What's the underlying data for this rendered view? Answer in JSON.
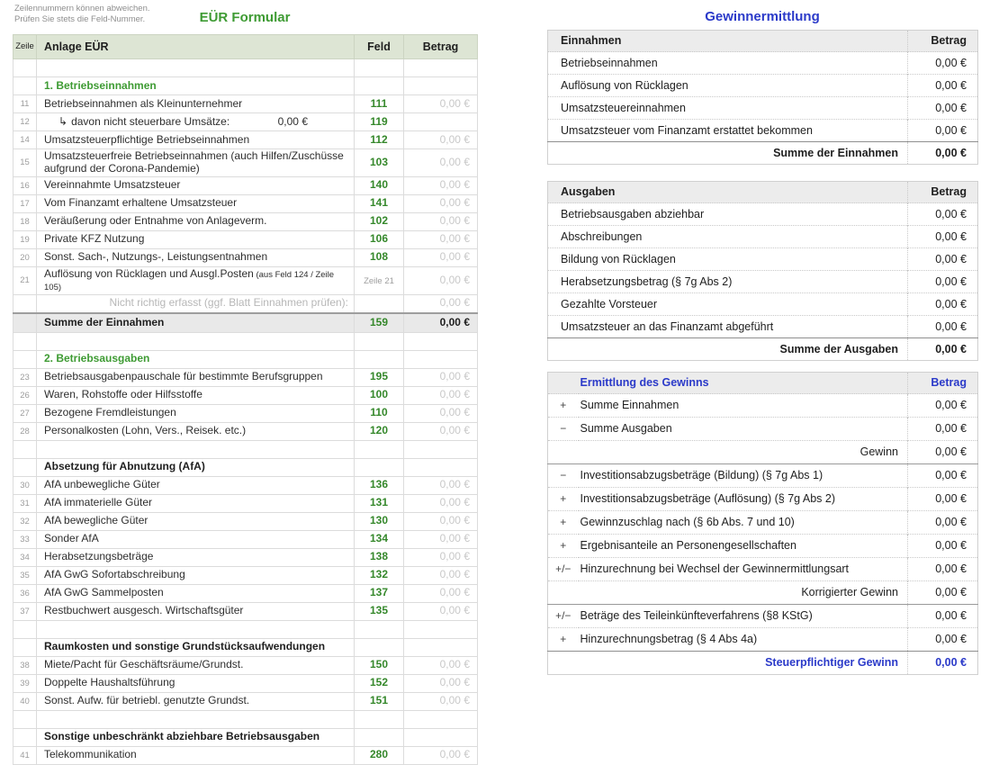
{
  "colors": {
    "accent_green": "#3e9b33",
    "accent_blue": "#2b3ac9",
    "header_band_green": "#dde5d4",
    "header_band_gray": "#ececec"
  },
  "left": {
    "note": [
      "Zeilennummern können abweichen.",
      "Prüfen Sie stets die Feld-Nummer."
    ],
    "title": "EÜR Formular",
    "headers": {
      "zeile": "Zeile",
      "anlage": "Anlage EÜR",
      "feld": "Feld",
      "betrag": "Betrag"
    },
    "rows": [
      {
        "type": "empty"
      },
      {
        "type": "section",
        "label": "1. Betriebseinnahmen"
      },
      {
        "type": "normal",
        "zeile": "11",
        "label": "Betriebseinnahmen als Kleinunternehmer",
        "feld": "111",
        "betrag": "0,00 €"
      },
      {
        "type": "sub",
        "zeile": "12",
        "arrow": "↳",
        "label": "davon nicht steuerbare Umsätze:",
        "inline_value": "0,00 €",
        "feld": "119"
      },
      {
        "type": "normal",
        "zeile": "14",
        "label": "Umsatzsteuerpflichtige Betriebseinnahmen",
        "feld": "112",
        "betrag": "0,00 €"
      },
      {
        "type": "normal",
        "zeile": "15",
        "label": "Umsatzsteuerfreie Betriebseinnahmen (auch Hilfen/Zuschüsse aufgrund der Corona-Pandemie)",
        "feld": "103",
        "betrag": "0,00 €"
      },
      {
        "type": "normal",
        "zeile": "16",
        "label": "Vereinnahmte Umsatzsteuer",
        "feld": "140",
        "betrag": "0,00 €"
      },
      {
        "type": "normal",
        "zeile": "17",
        "label": "Vom Finanzamt erhaltene Umsatzsteuer",
        "feld": "141",
        "betrag": "0,00 €"
      },
      {
        "type": "normal",
        "zeile": "18",
        "label": "Veräußerung oder Entnahme von Anlageverm.",
        "feld": "102",
        "betrag": "0,00 €"
      },
      {
        "type": "normal",
        "zeile": "19",
        "label": "Private KFZ Nutzung",
        "feld": "106",
        "betrag": "0,00 €"
      },
      {
        "type": "normal",
        "zeile": "20",
        "label": "Sonst. Sach-, Nutzungs-, Leistungsentnahmen",
        "feld": "108",
        "betrag": "0,00 €"
      },
      {
        "type": "normal",
        "zeile": "21",
        "label": "Auflösung von Rücklagen und Ausgl.Posten",
        "label_small": "(aus Feld 124 / Zeile 105)",
        "feld_small": "Zeile 21",
        "betrag": "0,00 €"
      },
      {
        "type": "note",
        "label": "Nicht richtig erfasst (ggf. Blatt Einnahmen prüfen):",
        "betrag": "0,00 €"
      },
      {
        "type": "sum",
        "label": "Summe der Einnahmen",
        "feld": "159",
        "betrag": "0,00 €"
      },
      {
        "type": "empty"
      },
      {
        "type": "section",
        "label": "2. Betriebsausgaben"
      },
      {
        "type": "normal",
        "zeile": "23",
        "label": "Betriebsausgabenpauschale für bestimmte Berufsgruppen",
        "feld": "195",
        "betrag": "0,00 €"
      },
      {
        "type": "normal",
        "zeile": "26",
        "label": "Waren, Rohstoffe oder Hilfsstoffe",
        "feld": "100",
        "betrag": "0,00 €"
      },
      {
        "type": "normal",
        "zeile": "27",
        "label": "Bezogene Fremdleistungen",
        "feld": "110",
        "betrag": "0,00 €"
      },
      {
        "type": "normal",
        "zeile": "28",
        "label": "Personalkosten (Lohn, Vers., Reisek. etc.)",
        "feld": "120",
        "betrag": "0,00 €"
      },
      {
        "type": "empty"
      },
      {
        "type": "subhead",
        "label": "Absetzung für Abnutzung (AfA)"
      },
      {
        "type": "normal",
        "zeile": "30",
        "label": "AfA unbewegliche Güter",
        "feld": "136",
        "betrag": "0,00 €"
      },
      {
        "type": "normal",
        "zeile": "31",
        "label": "AfA immaterielle Güter",
        "feld": "131",
        "betrag": "0,00 €"
      },
      {
        "type": "normal",
        "zeile": "32",
        "label": "AfA bewegliche Güter",
        "feld": "130",
        "betrag": "0,00 €"
      },
      {
        "type": "normal",
        "zeile": "33",
        "label": "Sonder AfA",
        "feld": "134",
        "betrag": "0,00 €"
      },
      {
        "type": "normal",
        "zeile": "34",
        "label": "Herabsetzungsbeträge",
        "feld": "138",
        "betrag": "0,00 €"
      },
      {
        "type": "normal",
        "zeile": "35",
        "label": "AfA GwG Sofortabschreibung",
        "feld": "132",
        "betrag": "0,00 €"
      },
      {
        "type": "normal",
        "zeile": "36",
        "label": "AfA GwG Sammelposten",
        "feld": "137",
        "betrag": "0,00 €"
      },
      {
        "type": "normal",
        "zeile": "37",
        "label": "Restbuchwert ausgesch. Wirtschaftsgüter",
        "feld": "135",
        "betrag": "0,00 €"
      },
      {
        "type": "empty"
      },
      {
        "type": "subhead",
        "label": "Raumkosten und sonstige Grundstücksaufwendungen"
      },
      {
        "type": "normal",
        "zeile": "38",
        "label": "Miete/Pacht für Geschäftsräume/Grundst.",
        "feld": "150",
        "betrag": "0,00 €"
      },
      {
        "type": "normal",
        "zeile": "39",
        "label": "Doppelte Haushaltsführung",
        "feld": "152",
        "betrag": "0,00 €"
      },
      {
        "type": "normal",
        "zeile": "40",
        "label": "Sonst. Aufw. für betriebl. genutzte Grundst.",
        "feld": "151",
        "betrag": "0,00 €"
      },
      {
        "type": "empty"
      },
      {
        "type": "subhead",
        "label": "Sonstige unbeschränkt abziehbare Betriebsausgaben"
      },
      {
        "type": "normal",
        "zeile": "41",
        "label": "Telekommunikation",
        "feld": "280",
        "betrag": "0,00 €"
      }
    ]
  },
  "right": {
    "title": "Gewinnermittlung",
    "einnahmen": {
      "header": "Einnahmen",
      "betrag_header": "Betrag",
      "rows": [
        {
          "label": "Betriebseinnahmen",
          "value": "0,00 €"
        },
        {
          "label": "Auflösung von Rücklagen",
          "value": "0,00 €"
        },
        {
          "label": "Umsatzsteuereinnahmen",
          "value": "0,00 €"
        },
        {
          "label": "Umsatzsteuer vom Finanzamt erstattet bekommen",
          "value": "0,00 €"
        }
      ],
      "sum_label": "Summe der Einnahmen",
      "sum_value": "0,00 €"
    },
    "ausgaben": {
      "header": "Ausgaben",
      "betrag_header": "Betrag",
      "rows": [
        {
          "label": "Betriebsausgaben abziehbar",
          "value": "0,00 €"
        },
        {
          "label": "Abschreibungen",
          "value": "0,00 €"
        },
        {
          "label": "Bildung von Rücklagen",
          "value": "0,00 €"
        },
        {
          "label": "Herabsetzungsbetrag (§ 7g Abs 2)",
          "value": "0,00 €"
        },
        {
          "label": "Gezahlte Vorsteuer",
          "value": "0,00 €"
        },
        {
          "label": "Umsatzsteuer an das Finanzamt abgeführt",
          "value": "0,00 €"
        }
      ],
      "sum_label": "Summe der Ausgaben",
      "sum_value": "0,00 €"
    },
    "ermittlung": {
      "header": "Ermittlung des Gewinns",
      "betrag_header": "Betrag",
      "rows": [
        {
          "type": "normal",
          "sign": "+",
          "label": "Summe Einnahmen",
          "value": "0,00 €"
        },
        {
          "type": "normal",
          "sign": "−",
          "label": "Summe Ausgaben",
          "value": "0,00 €"
        },
        {
          "type": "subtotal",
          "sign": "",
          "label": "Gewinn",
          "value": "0,00 €"
        },
        {
          "type": "normal",
          "sign": "−",
          "label": "Investitionsabzugsbeträge (Bildung) (§ 7g Abs 1)",
          "value": "0,00 €"
        },
        {
          "type": "normal",
          "sign": "+",
          "label": "Investitionsabzugsbeträge (Auflösung) (§ 7g Abs 2)",
          "value": "0,00 €"
        },
        {
          "type": "normal",
          "sign": "+",
          "label": "Gewinnzuschlag nach (§ 6b Abs. 7 und 10)",
          "value": "0,00 €"
        },
        {
          "type": "normal",
          "sign": "+",
          "label": "Ergebnisanteile an Personengesellschaften",
          "value": "0,00 €"
        },
        {
          "type": "normal",
          "sign": "+/−",
          "label": "Hinzurechnung bei Wechsel der Gewinnermittlungsart",
          "value": "0,00 €"
        },
        {
          "type": "subtotal",
          "sign": "",
          "label": "Korrigierter Gewinn",
          "value": "0,00 €"
        },
        {
          "type": "normal",
          "sign": "+/−",
          "label": "Beträge des Teileinkünfteverfahrens (§8 KStG)",
          "value": "0,00 €"
        },
        {
          "type": "normal",
          "sign": "+",
          "label": "Hinzurechnungsbetrag (§ 4 Abs 4a)",
          "value": "0,00 €"
        },
        {
          "type": "final",
          "sign": "",
          "label": "Steuerpflichtiger Gewinn",
          "value": "0,00 €"
        }
      ]
    }
  }
}
